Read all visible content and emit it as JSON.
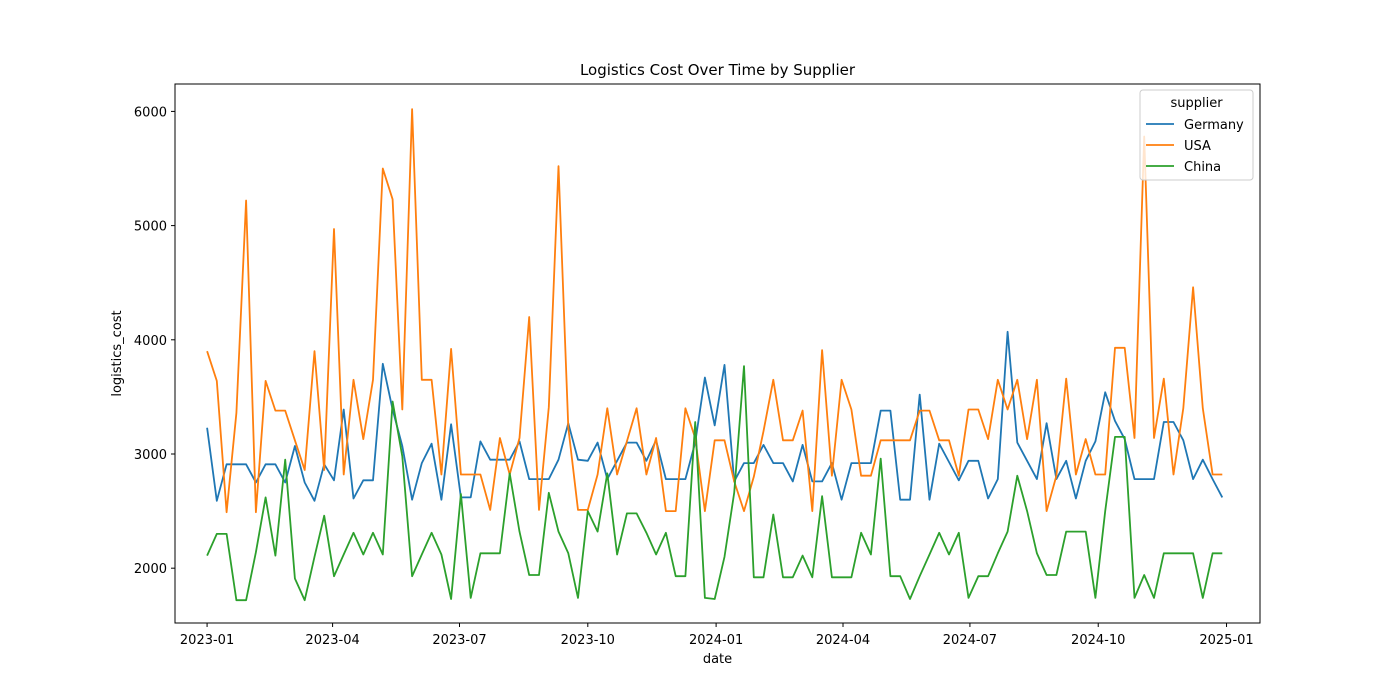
{
  "chart_data": {
    "type": "line",
    "title": "Logistics Cost Over Time by Supplier",
    "xlabel": "date",
    "ylabel": "logistics_cost",
    "x_axis_type": "date",
    "xlim": [
      "2022-12-09",
      "2025-01-25"
    ],
    "ylim": [
      1520,
      6240
    ],
    "x_ticks": [
      {
        "label": "2023-01",
        "date": "2023-01-01"
      },
      {
        "label": "2023-04",
        "date": "2023-04-01"
      },
      {
        "label": "2023-07",
        "date": "2023-07-01"
      },
      {
        "label": "2023-10",
        "date": "2023-10-01"
      },
      {
        "label": "2024-01",
        "date": "2024-01-01"
      },
      {
        "label": "2024-04",
        "date": "2024-04-01"
      },
      {
        "label": "2024-07",
        "date": "2024-07-01"
      },
      {
        "label": "2024-10",
        "date": "2024-10-01"
      },
      {
        "label": "2025-01",
        "date": "2025-01-01"
      }
    ],
    "y_ticks": [
      2000,
      3000,
      4000,
      5000,
      6000
    ],
    "grid": false,
    "legend": {
      "title": "supplier",
      "placement": "top-right"
    },
    "x": [
      "2023-01-01",
      "2023-01-08",
      "2023-01-15",
      "2023-01-22",
      "2023-01-29",
      "2023-02-05",
      "2023-02-12",
      "2023-02-19",
      "2023-02-26",
      "2023-03-05",
      "2023-03-12",
      "2023-03-19",
      "2023-03-26",
      "2023-04-02",
      "2023-04-09",
      "2023-04-16",
      "2023-04-23",
      "2023-04-30",
      "2023-05-07",
      "2023-05-14",
      "2023-05-21",
      "2023-05-28",
      "2023-06-04",
      "2023-06-11",
      "2023-06-18",
      "2023-06-25",
      "2023-07-02",
      "2023-07-09",
      "2023-07-16",
      "2023-07-23",
      "2023-07-30",
      "2023-08-06",
      "2023-08-13",
      "2023-08-20",
      "2023-08-27",
      "2023-09-03",
      "2023-09-10",
      "2023-09-17",
      "2023-09-24",
      "2023-10-01",
      "2023-10-08",
      "2023-10-15",
      "2023-10-22",
      "2023-10-29",
      "2023-11-05",
      "2023-11-12",
      "2023-11-19",
      "2023-11-26",
      "2023-12-03",
      "2023-12-10",
      "2023-12-17",
      "2023-12-24",
      "2023-12-31",
      "2024-01-07",
      "2024-01-14",
      "2024-01-21",
      "2024-01-28",
      "2024-02-04",
      "2024-02-11",
      "2024-02-18",
      "2024-02-25",
      "2024-03-03",
      "2024-03-10",
      "2024-03-17",
      "2024-03-24",
      "2024-03-31",
      "2024-04-07",
      "2024-04-14",
      "2024-04-21",
      "2024-04-28",
      "2024-05-05",
      "2024-05-12",
      "2024-05-19",
      "2024-05-26",
      "2024-06-02",
      "2024-06-09",
      "2024-06-16",
      "2024-06-23",
      "2024-06-30",
      "2024-07-07",
      "2024-07-14",
      "2024-07-21",
      "2024-07-28",
      "2024-08-04",
      "2024-08-11",
      "2024-08-18",
      "2024-08-25",
      "2024-09-01",
      "2024-09-08",
      "2024-09-15",
      "2024-09-22",
      "2024-09-29",
      "2024-10-06",
      "2024-10-13",
      "2024-10-20",
      "2024-10-27",
      "2024-11-03",
      "2024-11-10",
      "2024-11-17",
      "2024-11-24",
      "2024-12-01",
      "2024-12-08",
      "2024-12-15",
      "2024-12-22",
      "2024-12-29"
    ],
    "series": [
      {
        "name": "Germany",
        "color": "#1f77b4",
        "values": [
          3230,
          2590,
          2910,
          2910,
          2910,
          2750,
          2910,
          2910,
          2750,
          3070,
          2750,
          2590,
          2910,
          2770,
          3390,
          2610,
          2770,
          2770,
          3790,
          3390,
          3070,
          2600,
          2920,
          3090,
          2600,
          3260,
          2620,
          2620,
          3110,
          2950,
          2950,
          2950,
          3110,
          2780,
          2780,
          2780,
          2950,
          3270,
          2950,
          2940,
          3100,
          2780,
          2940,
          3100,
          3100,
          2940,
          3120,
          2780,
          2780,
          2780,
          3100,
          3670,
          3250,
          3780,
          2760,
          2920,
          2920,
          3080,
          2920,
          2920,
          2760,
          3080,
          2760,
          2760,
          2920,
          2600,
          2920,
          2920,
          2920,
          3380,
          3380,
          2600,
          2600,
          3520,
          2600,
          3090,
          2930,
          2770,
          2940,
          2940,
          2610,
          2780,
          4070,
          3100,
          2940,
          2780,
          3270,
          2780,
          2940,
          2610,
          2940,
          3110,
          3540,
          3290,
          3130,
          2780,
          2780,
          2780,
          3280,
          3280,
          3120,
          2780,
          2950,
          2780,
          2620
        ]
      },
      {
        "name": "USA",
        "color": "#ff7f0e",
        "values": [
          3900,
          3640,
          2490,
          3360,
          5220,
          2490,
          3640,
          3380,
          3380,
          3120,
          2860,
          3900,
          2860,
          4970,
          2820,
          3650,
          3130,
          3650,
          5500,
          5230,
          3390,
          6020,
          3650,
          3650,
          2820,
          3920,
          2820,
          2820,
          2820,
          2510,
          3140,
          2820,
          3140,
          4200,
          2510,
          3410,
          5520,
          3230,
          2510,
          2510,
          2820,
          3400,
          2820,
          3110,
          3400,
          2820,
          3140,
          2500,
          2500,
          3400,
          3140,
          2500,
          3120,
          3120,
          2760,
          2500,
          2800,
          3200,
          3650,
          3120,
          3120,
          3380,
          2500,
          3910,
          2810,
          3650,
          3390,
          2810,
          2810,
          3120,
          3120,
          3120,
          3120,
          3380,
          3380,
          3120,
          3120,
          2810,
          3390,
          3390,
          3130,
          3650,
          3390,
          3650,
          3130,
          3650,
          2500,
          2810,
          3660,
          2820,
          3130,
          2820,
          2820,
          3930,
          3930,
          3140,
          5780,
          3140,
          3660,
          2820,
          3400,
          4460,
          3400,
          2820,
          2820
        ]
      },
      {
        "name": "China",
        "color": "#2ca02c",
        "values": [
          2110,
          2300,
          2300,
          1720,
          1720,
          2140,
          2620,
          2110,
          2950,
          1910,
          1720,
          2100,
          2460,
          1930,
          2120,
          2310,
          2120,
          2310,
          2120,
          3460,
          2980,
          1930,
          2120,
          2310,
          2120,
          1730,
          2650,
          1740,
          2130,
          2130,
          2130,
          2830,
          2320,
          1940,
          1940,
          2660,
          2320,
          2130,
          1740,
          2500,
          2320,
          2830,
          2120,
          2480,
          2480,
          2310,
          2120,
          2310,
          1930,
          1930,
          3280,
          1740,
          1730,
          2100,
          2660,
          3770,
          1920,
          1920,
          2470,
          1920,
          1920,
          2110,
          1920,
          2630,
          1920,
          1920,
          1920,
          2310,
          2120,
          2960,
          1930,
          1930,
          1730,
          1930,
          2120,
          2310,
          2120,
          2310,
          1740,
          1930,
          1930,
          2130,
          2320,
          2810,
          2500,
          2130,
          1940,
          1940,
          2320,
          2320,
          2320,
          1740,
          2500,
          3150,
          3150,
          1740,
          1940,
          1740,
          2130,
          2130,
          2130,
          2130,
          1740,
          2130,
          2130
        ]
      }
    ]
  }
}
